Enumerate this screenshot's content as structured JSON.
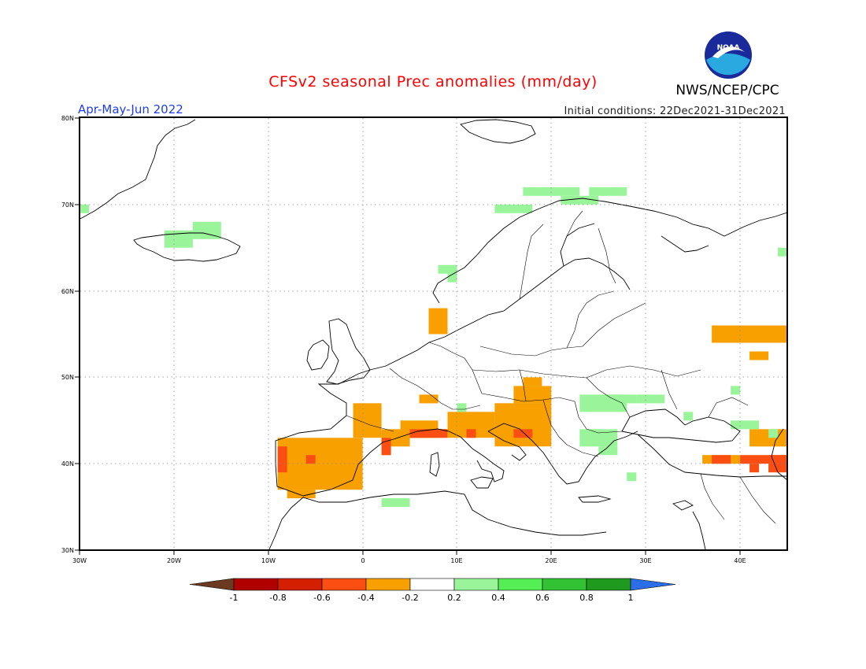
{
  "header": {
    "title": "CFSv2 seasonal Prec anomalies (mm/day)",
    "season": "Apr-May-Jun 2022",
    "initial_conditions": "Initial conditions: 22Dec2021-31Dec2021",
    "organization": "NWS/NCEP/CPC",
    "logo_text": "NOAA"
  },
  "map": {
    "projection": "lat-lon",
    "lon_range": [
      -30,
      45
    ],
    "lat_range": [
      30,
      80
    ],
    "x_ticks": [
      "30W",
      "20W",
      "10W",
      "0",
      "10E",
      "20E",
      "30E",
      "40E"
    ],
    "y_ticks": [
      "30N",
      "40N",
      "50N",
      "60N",
      "70N",
      "80N"
    ],
    "grid": "dotted"
  },
  "colorbar": {
    "labels": [
      "-1",
      "-0.8",
      "-0.6",
      "-0.4",
      "-0.2",
      "0.2",
      "0.4",
      "0.6",
      "0.8",
      "1"
    ],
    "colors": [
      "#6b3a21",
      "#b00000",
      "#d42000",
      "#fa4e12",
      "#f8a000",
      "#ffffff",
      "#9af59a",
      "#55ee55",
      "#33c233",
      "#1f9a1f",
      "#2b6ee8"
    ]
  },
  "colors": {
    "title": "#ff0000",
    "season": "#1f3cf2",
    "anomaly_dry": "#f8a000",
    "anomaly_very_dry": "#fa4e12",
    "anomaly_wet": "#9af59a"
  }
}
